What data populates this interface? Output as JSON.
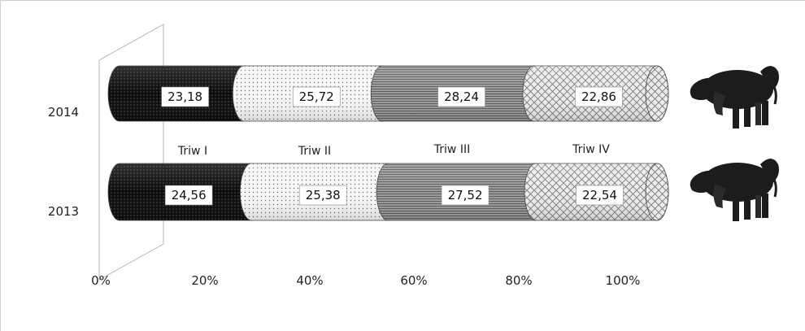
{
  "chart_data": {
    "type": "bar",
    "orientation": "horizontal",
    "stacked": "percent",
    "categories": [
      "2014",
      "2013"
    ],
    "series": [
      {
        "name": "Triw I",
        "values": [
          23.18,
          24.56
        ],
        "labels": [
          "23,18",
          "24,56"
        ]
      },
      {
        "name": "Triw II",
        "values": [
          25.72,
          25.38
        ],
        "labels": [
          "25,72",
          "25,38"
        ]
      },
      {
        "name": "Triw III",
        "values": [
          28.24,
          27.52
        ],
        "labels": [
          "28,24",
          "27,52"
        ]
      },
      {
        "name": "Triw IV",
        "values": [
          22.86,
          22.54
        ],
        "labels": [
          "22,86",
          "22,54"
        ]
      }
    ],
    "x_ticks": [
      "0%",
      "20%",
      "40%",
      "60%",
      "80%",
      "100%"
    ],
    "xlim": [
      0,
      100
    ],
    "grid": false,
    "legend": "inline labels between bars",
    "colors": [
      "#111111",
      "#f2f2f2",
      "#8c8c8c",
      "#dcdcdc"
    ]
  },
  "decorations": {
    "icons": [
      "cow-icon",
      "cow-icon"
    ]
  }
}
